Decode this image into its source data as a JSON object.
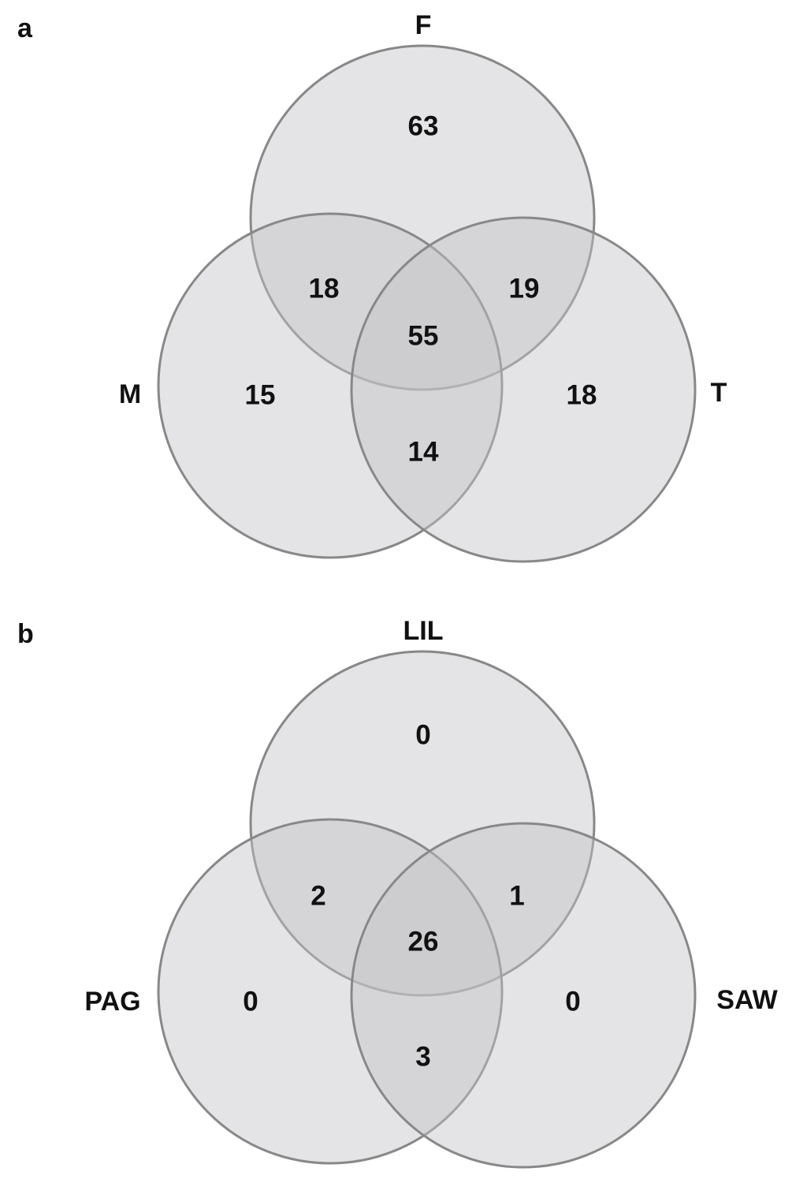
{
  "panels": [
    {
      "label": "a",
      "sets": [
        "F",
        "M",
        "T"
      ],
      "regions": {
        "top_only": 63,
        "top_left": 18,
        "top_right": 19,
        "center": 55,
        "left_only": 15,
        "right_only": 18,
        "left_right": 14
      }
    },
    {
      "label": "b",
      "sets": [
        "LIL",
        "PAG",
        "SAW"
      ],
      "regions": {
        "top_only": 0,
        "top_left": 2,
        "top_right": 1,
        "center": 26,
        "left_only": 0,
        "right_only": 0,
        "left_right": 3
      }
    }
  ]
}
